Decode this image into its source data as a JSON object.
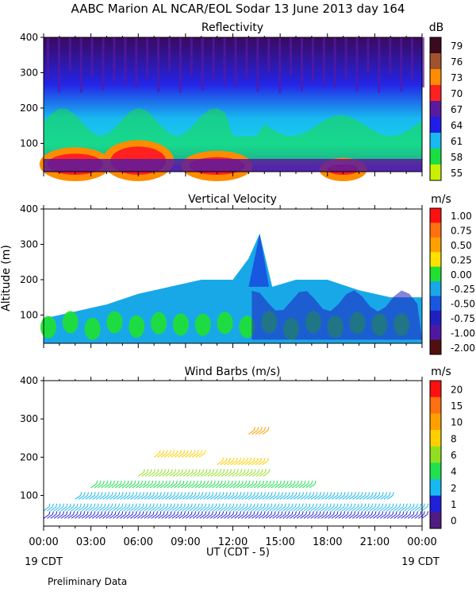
{
  "header": {
    "title": "AABC Marion AL NCAR/EOL Sodar  13 June 2013 day 164"
  },
  "x_axis": {
    "tick_labels": [
      "00:00",
      "03:00",
      "06:00",
      "09:00",
      "12:00",
      "15:00",
      "18:00",
      "21:00",
      "00:00"
    ],
    "label": "UT  (CDT - 5)",
    "left_date": "19 CDT",
    "right_date": "19 CDT"
  },
  "footer": {
    "note": "Preliminary Data"
  },
  "chart_data": [
    {
      "type": "heatmap",
      "title": "Reflectivity",
      "unit": "dB",
      "xlabel": "UT  (CDT - 5)",
      "ylabel": "",
      "x_range_hours": [
        0,
        24
      ],
      "ylim": [
        20,
        400
      ],
      "yticks": [
        "100",
        "200",
        "300",
        "400"
      ],
      "colorbar": {
        "labels": [
          "79",
          "76",
          "73",
          "70",
          "67",
          "64",
          "61",
          "58",
          "55"
        ],
        "colors": [
          "#3a0a1e",
          "#a0522d",
          "#ff8c00",
          "#ff2020",
          "#5a1aa0",
          "#1e1ee8",
          "#18b8f0",
          "#18e040",
          "#c8f000"
        ]
      },
      "summary": [
        {
          "time_h": 2,
          "level_db": 70,
          "height_range_m": [
            20,
            80
          ]
        },
        {
          "time_h": 6,
          "level_db": 70,
          "height_range_m": [
            20,
            100
          ]
        },
        {
          "time_h": 11,
          "level_db": 70,
          "height_range_m": [
            20,
            70
          ]
        },
        {
          "time_h": 19,
          "level_db": 70,
          "height_range_m": [
            20,
            50
          ]
        }
      ]
    },
    {
      "type": "heatmap",
      "title": "Vertical Velocity",
      "unit": "m/s",
      "xlabel": "UT  (CDT - 5)",
      "ylabel": "Altitude (m)",
      "x_range_hours": [
        0,
        24
      ],
      "ylim": [
        20,
        400
      ],
      "yticks": [
        "100",
        "200",
        "300",
        "400"
      ],
      "colorbar": {
        "labels": [
          "1.00",
          "0.75",
          "0.50",
          "0.25",
          "0.00",
          "-0.25",
          "-0.50",
          "-0.75",
          "-1.00",
          "-2.00"
        ],
        "colors": [
          "#ff1010",
          "#ff7010",
          "#ffa000",
          "#ffe000",
          "#20e030",
          "#18a8e8",
          "#1858e0",
          "#2020c0",
          "#5018a0",
          "#501010"
        ]
      },
      "data_top_height_m": {
        "time_h": [
          0,
          2,
          4,
          6,
          8,
          10,
          12,
          13,
          13.7,
          14.5,
          16,
          18,
          20,
          22,
          24
        ],
        "height_m": [
          90,
          110,
          130,
          160,
          180,
          200,
          200,
          260,
          330,
          180,
          200,
          200,
          170,
          150,
          150
        ]
      }
    },
    {
      "type": "scatter",
      "title": "Wind Barbs (m/s)",
      "unit": "m/s",
      "xlabel": "UT  (CDT - 5)",
      "ylabel": "",
      "x_range_hours": [
        0,
        24
      ],
      "ylim": [
        20,
        400
      ],
      "yticks": [
        "100",
        "200",
        "300",
        "400"
      ],
      "colorbar": {
        "labels": [
          "20",
          "15",
          "10",
          "8",
          "6",
          "4",
          "2",
          "1",
          "0"
        ],
        "colors": [
          "#ff1010",
          "#ff7010",
          "#ffa000",
          "#ffd000",
          "#90e020",
          "#20e050",
          "#18b8f0",
          "#2020d8",
          "#501a80"
        ]
      },
      "rows": [
        {
          "height_m": 260,
          "time_range_h": [
            13,
            14
          ],
          "speed_ms": 10
        },
        {
          "height_m": 200,
          "time_range_h": [
            7,
            10
          ],
          "speed_ms": 8
        },
        {
          "height_m": 180,
          "time_range_h": [
            11,
            14
          ],
          "speed_ms": 8
        },
        {
          "height_m": 150,
          "time_range_h": [
            6,
            14
          ],
          "speed_ms": 6
        },
        {
          "height_m": 120,
          "time_range_h": [
            3,
            17
          ],
          "speed_ms": 4
        },
        {
          "height_m": 90,
          "time_range_h": [
            2,
            22
          ],
          "speed_ms": 3
        },
        {
          "height_m": 60,
          "time_range_h": [
            0,
            24
          ],
          "speed_ms": 2
        },
        {
          "height_m": 40,
          "time_range_h": [
            0,
            24
          ],
          "speed_ms": 1
        }
      ]
    }
  ]
}
